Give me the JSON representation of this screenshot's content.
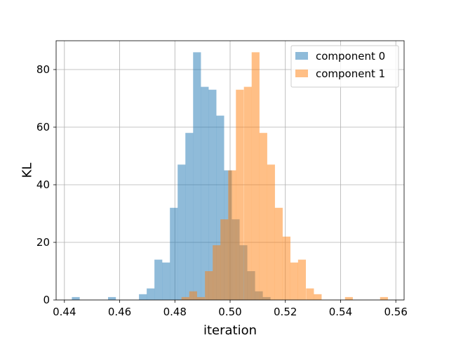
{
  "chart_data": {
    "type": "histogram",
    "title": "",
    "xlabel": "iteration",
    "ylabel": "KL",
    "xlim": [
      0.437,
      0.563
    ],
    "ylim": [
      0,
      90
    ],
    "xticks": [
      0.44,
      0.46,
      0.48,
      0.5,
      0.52,
      0.54,
      0.56
    ],
    "xtick_labels": [
      "0.44",
      "0.46",
      "0.48",
      "0.50",
      "0.52",
      "0.54",
      "0.56"
    ],
    "yticks": [
      0,
      20,
      40,
      60,
      80
    ],
    "ytick_labels": [
      "0",
      "20",
      "40",
      "60",
      "80"
    ],
    "grid": true,
    "legend_position": "top-right",
    "bin_width": 0.00284,
    "series": [
      {
        "name": "component 0",
        "color": "#1f77b4",
        "alpha": 0.5,
        "bins": [
          {
            "x0": 0.4427,
            "count": 1
          },
          {
            "x0": 0.4558,
            "count": 1
          },
          {
            "x0": 0.467,
            "count": 2
          },
          {
            "x0": 0.4698,
            "count": 4
          },
          {
            "x0": 0.4726,
            "count": 14
          },
          {
            "x0": 0.4754,
            "count": 13
          },
          {
            "x0": 0.4782,
            "count": 32
          },
          {
            "x0": 0.481,
            "count": 47
          },
          {
            "x0": 0.4838,
            "count": 58
          },
          {
            "x0": 0.4866,
            "count": 86
          },
          {
            "x0": 0.4894,
            "count": 74
          },
          {
            "x0": 0.4922,
            "count": 73
          },
          {
            "x0": 0.495,
            "count": 64
          },
          {
            "x0": 0.4978,
            "count": 45
          },
          {
            "x0": 0.5006,
            "count": 28
          },
          {
            "x0": 0.5034,
            "count": 19
          },
          {
            "x0": 0.5062,
            "count": 10
          },
          {
            "x0": 0.509,
            "count": 3
          },
          {
            "x0": 0.5118,
            "count": 1
          }
        ]
      },
      {
        "name": "component 1",
        "color": "#ff7f0e",
        "alpha": 0.5,
        "bins": [
          {
            "x0": 0.4824,
            "count": 1
          },
          {
            "x0": 0.4852,
            "count": 3
          },
          {
            "x0": 0.488,
            "count": 1
          },
          {
            "x0": 0.4909,
            "count": 10
          },
          {
            "x0": 0.4937,
            "count": 19
          },
          {
            "x0": 0.4965,
            "count": 28
          },
          {
            "x0": 0.4993,
            "count": 45
          },
          {
            "x0": 0.5021,
            "count": 73
          },
          {
            "x0": 0.505,
            "count": 74
          },
          {
            "x0": 0.5078,
            "count": 86
          },
          {
            "x0": 0.5106,
            "count": 58
          },
          {
            "x0": 0.5134,
            "count": 47
          },
          {
            "x0": 0.5162,
            "count": 32
          },
          {
            "x0": 0.519,
            "count": 22
          },
          {
            "x0": 0.5218,
            "count": 13
          },
          {
            "x0": 0.5246,
            "count": 14
          },
          {
            "x0": 0.5275,
            "count": 4
          },
          {
            "x0": 0.5303,
            "count": 2
          },
          {
            "x0": 0.5416,
            "count": 1
          },
          {
            "x0": 0.5543,
            "count": 1
          }
        ]
      }
    ]
  }
}
